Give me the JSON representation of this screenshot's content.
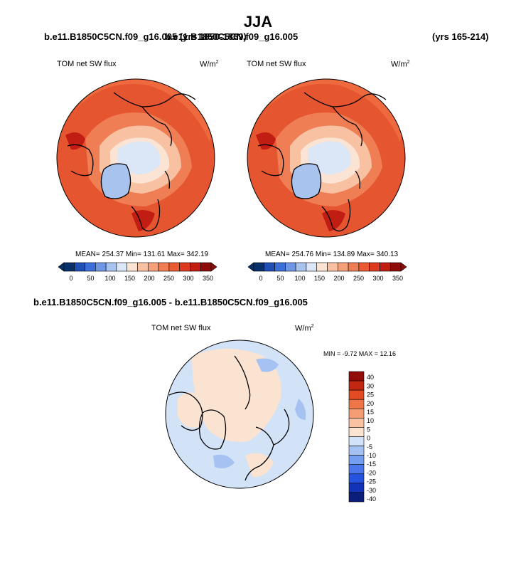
{
  "title": "JJA",
  "panels": [
    {
      "case": "b.e11.B1850C5CN.f09_g16.005",
      "years": "(yrs 1850-1869)",
      "variable_label": "TOM net SW flux",
      "units_label": "W/m",
      "units_exp": "2",
      "stats": "MEAN= 254.37  Min= 131.61  Max= 342.19"
    },
    {
      "case": "b.e11.B1850C5CN.f09_g16.005",
      "years": "(yrs 165-214)",
      "variable_label": "TOM net SW flux",
      "units_label": "W/m",
      "units_exp": "2",
      "stats": "MEAN= 254.76  Min= 134.89  Max= 340.13"
    }
  ],
  "diff": {
    "title": "b.e11.B1850C5CN.f09_g16.005 - b.e11.B1850C5CN.f09_g16.005",
    "variable_label": "TOM net SW flux",
    "units_label": "W/m",
    "units_exp": "2",
    "stats": "MIN =  -9.72 MAX =  12.16"
  },
  "colors": {
    "abs_scale": [
      "#08306b",
      "#1f4fb4",
      "#3d6fd9",
      "#6f97e6",
      "#a9c3ef",
      "#dbe7f6",
      "#fbe4d4",
      "#f7c1a2",
      "#f4a07a",
      "#f07e54",
      "#ea5a33",
      "#de3a1f",
      "#c11d12",
      "#8d0c0a"
    ],
    "diff_scale": [
      "#0b1f7a",
      "#1233b8",
      "#2652e0",
      "#4a78ec",
      "#769ef0",
      "#a6c2f3",
      "#d2e2f7",
      "#fbe3d1",
      "#f8c2a3",
      "#f59d75",
      "#ee7548",
      "#e24b24",
      "#c22712",
      "#920c0a"
    ]
  },
  "chart_data": [
    {
      "type": "heatmap",
      "title": "TOM net SW flux",
      "subtitle": "b.e11.B1850C5CN.f09_g16.005 (yrs 1850-1869)",
      "projection": "polar stereographic (north pole)",
      "units": "W/m2",
      "mean": 254.37,
      "min": 131.61,
      "max": 342.19,
      "colorbar_levels": [
        0,
        25,
        50,
        75,
        100,
        125,
        150,
        175,
        200,
        225,
        250,
        275,
        300,
        325,
        350
      ],
      "colorbar_tick_labels": [
        "0",
        "50",
        "100",
        "150",
        "200",
        "250",
        "300",
        "350"
      ]
    },
    {
      "type": "heatmap",
      "title": "TOM net SW flux",
      "subtitle": "b.e11.B1850C5CN.f09_g16.005 (yrs 165-214)",
      "projection": "polar stereographic (north pole)",
      "units": "W/m2",
      "mean": 254.76,
      "min": 134.89,
      "max": 340.13,
      "colorbar_levels": [
        0,
        25,
        50,
        75,
        100,
        125,
        150,
        175,
        200,
        225,
        250,
        275,
        300,
        325,
        350
      ],
      "colorbar_tick_labels": [
        "0",
        "50",
        "100",
        "150",
        "200",
        "250",
        "300",
        "350"
      ]
    },
    {
      "type": "heatmap",
      "title": "TOM net SW flux",
      "subtitle": "b.e11.B1850C5CN.f09_g16.005 - b.e11.B1850C5CN.f09_g16.005",
      "projection": "polar stereographic (north pole)",
      "units": "W/m2",
      "min": -9.72,
      "max": 12.16,
      "colorbar_levels": [
        -40,
        -30,
        -25,
        -20,
        -15,
        -10,
        -5,
        0,
        5,
        10,
        15,
        20,
        25,
        30,
        40
      ],
      "colorbar_tick_labels": [
        "40",
        "30",
        "25",
        "20",
        "15",
        "10",
        "5",
        "0",
        "-5",
        "-10",
        "-15",
        "-20",
        "-25",
        "-30",
        "-40"
      ]
    }
  ]
}
